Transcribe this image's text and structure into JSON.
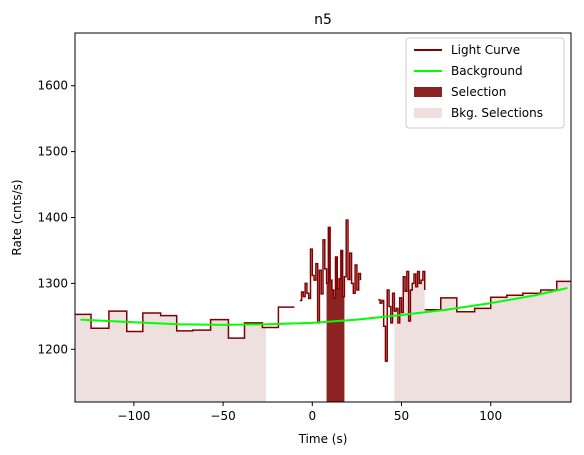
{
  "chart_data": {
    "type": "line",
    "title": "n5",
    "xlabel": "Time (s)",
    "ylabel": "Rate (cnts/s)",
    "xlim": [
      -133,
      145
    ],
    "ylim": [
      1120,
      1680
    ],
    "xticks": [
      -100,
      -50,
      0,
      50,
      100
    ],
    "yticks": [
      1200,
      1300,
      1400,
      1500,
      1600
    ],
    "grid": false,
    "legend_position": "top-right",
    "colors": {
      "light_curve": "#800000",
      "background": "#00ff00",
      "selection": "#8b2323",
      "bkg_selection": "#efe0e0"
    },
    "legend": [
      {
        "key": "light_curve",
        "label": "Light Curve",
        "kind": "line"
      },
      {
        "key": "background",
        "label": "Background",
        "kind": "line"
      },
      {
        "key": "selection",
        "label": "Selection",
        "kind": "patch"
      },
      {
        "key": "bkg_selection",
        "label": "Bkg. Selections",
        "kind": "patch"
      }
    ],
    "light_curve": {
      "coarse_left": {
        "edges": [
          -133,
          -124,
          -114,
          -104,
          -95,
          -85,
          -76,
          -67,
          -57,
          -47,
          -38,
          -28,
          -19,
          -10
        ],
        "values": [
          1253,
          1232,
          1258,
          1227,
          1255,
          1251,
          1228,
          1229,
          1245,
          1217,
          1240,
          1233,
          1264
        ]
      },
      "fine_middle": {
        "x": [
          -7,
          -6,
          -5,
          -4,
          -3,
          -2,
          -1,
          0,
          1,
          2,
          3,
          4,
          5,
          6,
          7,
          8,
          9,
          10,
          11,
          12,
          13,
          14,
          15,
          16,
          17,
          18,
          19,
          20,
          21,
          22,
          23,
          24,
          25,
          26,
          27
        ],
        "values": [
          1274,
          1287,
          1280,
          1300,
          1285,
          1277,
          1352,
          1312,
          1305,
          1330,
          1240,
          1320,
          1284,
          1366,
          1322,
          1300,
          1385,
          1305,
          1290,
          1278,
          1340,
          1292,
          1307,
          1350,
          1280,
          1310,
          1396,
          1306,
          1346,
          1300,
          1285,
          1328,
          1290,
          1315,
          1305
        ]
      },
      "fine_right": {
        "x": [
          37,
          38,
          39,
          40,
          41,
          42,
          43,
          44,
          45,
          46,
          47,
          48,
          49,
          50,
          51,
          52,
          53,
          54,
          55,
          56,
          57,
          58,
          59,
          60,
          61,
          62,
          63
        ],
        "values": [
          1275,
          1270,
          1274,
          1235,
          1182,
          1290,
          1265,
          1240,
          1285,
          1258,
          1262,
          1240,
          1278,
          1256,
          1310,
          1288,
          1318,
          1243,
          1290,
          1300,
          1314,
          1295,
          1318,
          1300,
          1305,
          1318,
          1290
        ]
      },
      "coarse_right": {
        "edges": [
          63,
          72,
          81,
          91,
          100,
          109,
          118,
          128,
          137,
          145
        ],
        "values": [
          1260,
          1278,
          1257,
          1262,
          1279,
          1282,
          1285,
          1290,
          1303
        ]
      }
    },
    "background": {
      "x": [
        -130,
        -100,
        -75,
        -50,
        -25,
        0,
        25,
        50,
        75,
        100,
        125,
        143
      ],
      "y": [
        1245,
        1241,
        1238,
        1237,
        1238,
        1240,
        1245,
        1252,
        1260,
        1270,
        1282,
        1293
      ]
    },
    "selection": {
      "x": [
        8,
        9,
        10,
        11,
        12,
        13,
        14,
        15,
        16,
        17,
        18
      ],
      "y": [
        1300,
        1385,
        1305,
        1290,
        1278,
        1340,
        1292,
        1307,
        1350,
        1280,
        1280
      ]
    },
    "bkg_selections": [
      {
        "from": -133,
        "to": -26
      },
      {
        "from": 46,
        "to": 145
      }
    ]
  }
}
